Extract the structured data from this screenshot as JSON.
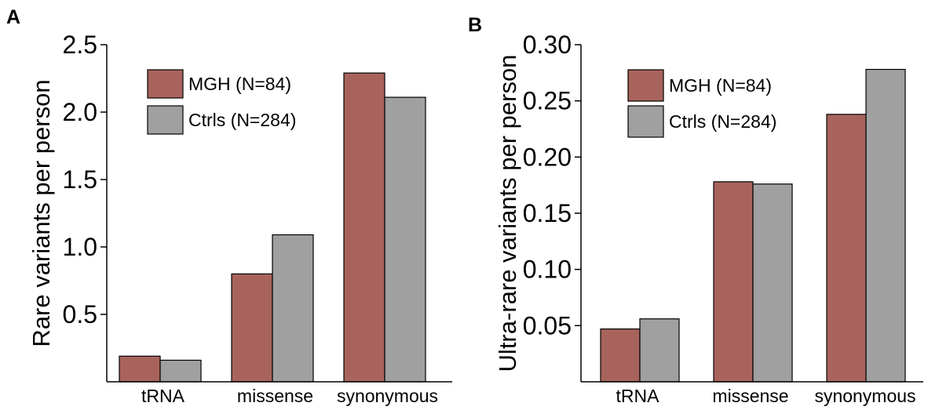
{
  "chart_data": [
    {
      "panel_label": "A",
      "type": "bar",
      "categories": [
        "tRNA",
        "missense",
        "synonymous"
      ],
      "series": [
        {
          "name": "MGH (N=84)",
          "color": "#a8645c",
          "values": [
            0.19,
            0.8,
            2.29
          ]
        },
        {
          "name": "Ctrls (N=284)",
          "color": "#a0a0a0",
          "values": [
            0.16,
            1.09,
            2.11
          ]
        }
      ],
      "ylabel": "Rare variants per person",
      "xlabel": "",
      "ylim": [
        0,
        2.5
      ],
      "yticks": [
        0.5,
        1.0,
        1.5,
        2.0,
        2.5
      ],
      "ytick_labels": [
        "0.5",
        "1.0",
        "1.5",
        "2.0",
        "2.5"
      ],
      "legend_position": "top-left",
      "grid": false
    },
    {
      "panel_label": "B",
      "type": "bar",
      "categories": [
        "tRNA",
        "missense",
        "synonymous"
      ],
      "series": [
        {
          "name": "MGH (N=84)",
          "color": "#a8645c",
          "values": [
            0.047,
            0.178,
            0.238
          ]
        },
        {
          "name": "Ctrls (N=284)",
          "color": "#a0a0a0",
          "values": [
            0.056,
            0.176,
            0.278
          ]
        }
      ],
      "ylabel": "Ultra-rare variants per person",
      "xlabel": "",
      "ylim": [
        0,
        0.3
      ],
      "yticks": [
        0.05,
        0.1,
        0.15,
        0.2,
        0.25,
        0.3
      ],
      "ytick_labels": [
        "0.05",
        "0.10",
        "0.15",
        "0.20",
        "0.25",
        "0.30"
      ],
      "legend_position": "top-left",
      "grid": false
    }
  ]
}
